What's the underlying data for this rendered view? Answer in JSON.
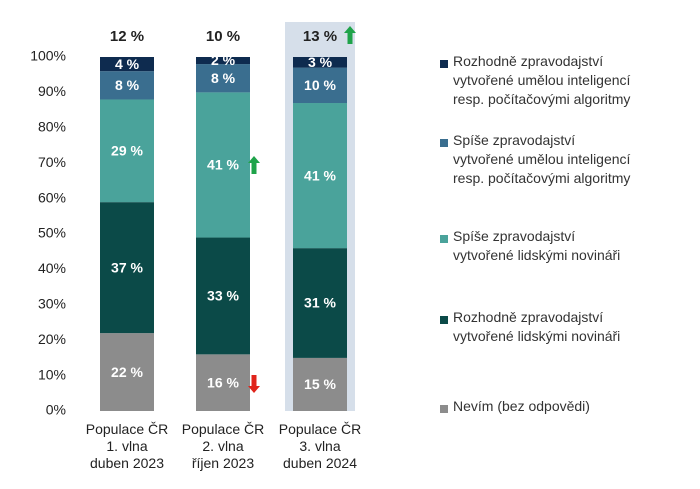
{
  "chart_data": {
    "type": "stacked_bar",
    "categories": [
      "Populace ČR\n1. vlna\nduben 2023",
      "Populace ČR\n2. vlna\nříjen 2023",
      "Populace ČR\n3. vlna\nduben 2024"
    ],
    "top_labels": [
      "12 %",
      "10 %",
      "13 %"
    ],
    "series": [
      {
        "name": "Nevím (bez odpovědi)",
        "color": "#8c8c8c",
        "values": [
          22,
          16,
          15
        ],
        "value_labels": [
          "22 %",
          "16 %",
          "15 %"
        ]
      },
      {
        "name": "Rozhodně zpravodajství\nvytvořené lidskými novináři",
        "color": "#0b4a48",
        "values": [
          37,
          33,
          31
        ],
        "value_labels": [
          "37 %",
          "33 %",
          "31 %"
        ]
      },
      {
        "name": "Spíše zpravodajství\nvytvořené lidskými novináři",
        "color": "#4aa39b",
        "values": [
          29,
          41,
          41
        ],
        "value_labels": [
          "29 %",
          "41 %",
          "41 %"
        ]
      },
      {
        "name": "Spíše zpravodajství\nvytvořené umělou inteligencí\nresp. počítačovými algoritmy",
        "color": "#3a6e8f",
        "values": [
          8,
          8,
          10
        ],
        "value_labels": [
          "8 %",
          "8 %",
          "10 %"
        ]
      },
      {
        "name": "Rozhodně zpravodajství\nvytvořené umělou inteligencí\nresp. počítačovými algoritmy",
        "color": "#0e2b4f",
        "values": [
          4,
          2,
          3
        ],
        "value_labels": [
          "4 %",
          "2 %",
          "3 %"
        ]
      }
    ],
    "ylim": [
      0,
      100
    ],
    "yticks": [
      {
        "value": 0,
        "label": "0%"
      },
      {
        "value": 10,
        "label": "10%"
      },
      {
        "value": 20,
        "label": "20%"
      },
      {
        "value": 30,
        "label": "30%"
      },
      {
        "value": 40,
        "label": "40%"
      },
      {
        "value": 50,
        "label": "50%"
      },
      {
        "value": 60,
        "label": "60%"
      },
      {
        "value": 70,
        "label": "70%"
      },
      {
        "value": 80,
        "label": "80%"
      },
      {
        "value": 90,
        "label": "90%"
      },
      {
        "value": 100,
        "label": "100%"
      }
    ]
  }
}
